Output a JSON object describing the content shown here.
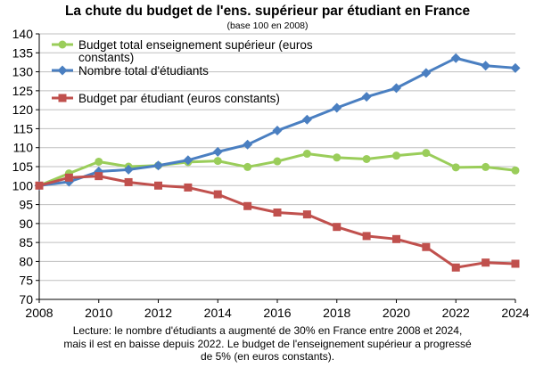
{
  "chart_data": {
    "type": "line",
    "title": "La chute du budget de l'ens. supérieur par étudiant en France",
    "subtitle": "(base 100 en 2008)",
    "xlabel": "",
    "ylabel": "",
    "xlim": [
      2008,
      2024
    ],
    "ylim": [
      70,
      140
    ],
    "x_ticks": [
      2008,
      2010,
      2012,
      2014,
      2016,
      2018,
      2020,
      2022,
      2024
    ],
    "y_ticks": [
      70,
      75,
      80,
      85,
      90,
      95,
      100,
      105,
      110,
      115,
      120,
      125,
      130,
      135,
      140
    ],
    "grid": "horizontal",
    "legend_position": "top-left",
    "x": [
      2008,
      2009,
      2010,
      2011,
      2012,
      2013,
      2014,
      2015,
      2016,
      2017,
      2018,
      2019,
      2020,
      2021,
      2022,
      2023,
      2024
    ],
    "series": [
      {
        "name": "Budget total enseignement supérieur (euros constants)",
        "legend_lines": [
          "Budget total enseignement supérieur (euros",
          "constants)"
        ],
        "color": "#9acd5a",
        "marker": "circle",
        "values": [
          100,
          103.2,
          106.3,
          105.0,
          105.3,
          106.2,
          106.5,
          104.9,
          106.4,
          108.4,
          107.4,
          107.0,
          107.9,
          108.6,
          104.8,
          104.9,
          104.0
        ]
      },
      {
        "name": "Nombre total d'étudiants",
        "legend_lines": [
          "Nombre total d'étudiants"
        ],
        "color": "#4a7fc1",
        "marker": "diamond",
        "values": [
          100,
          101.0,
          103.7,
          104.2,
          105.3,
          106.7,
          108.9,
          110.8,
          114.5,
          117.4,
          120.5,
          123.4,
          125.7,
          129.7,
          133.6,
          131.6,
          131.0
        ]
      },
      {
        "name": "Budget par étudiant (euros constants)",
        "legend_lines": [
          "Budget par étudiant (euros constants)"
        ],
        "color": "#c0504d",
        "marker": "square",
        "values": [
          100,
          102.1,
          102.5,
          100.9,
          100.0,
          99.5,
          97.7,
          94.6,
          92.9,
          92.4,
          89.1,
          86.7,
          85.9,
          83.8,
          78.4,
          79.7,
          79.4
        ]
      }
    ]
  },
  "caption_lines": [
    "Lecture: le nombre d'étudiants a augmenté de 30% en France entre 2008 et 2024,",
    "mais il est en baisse depuis 2022. Le budget de l'enseignement supérieur a progressé",
    "de 5% (en euros constants)."
  ]
}
